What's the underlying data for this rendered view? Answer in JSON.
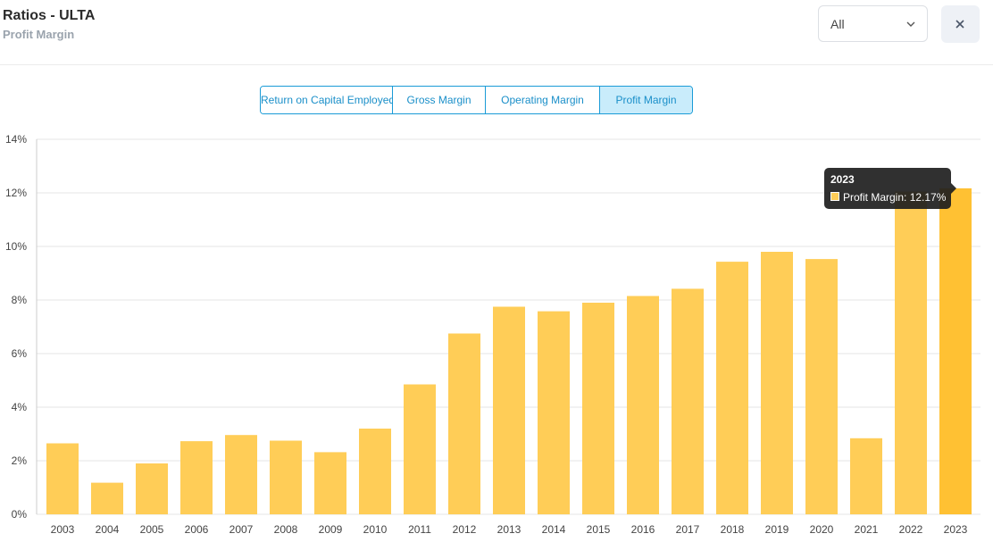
{
  "header": {
    "title": "Ratios - ULTA",
    "subtitle": "Profit Margin",
    "period_select": {
      "value": "All"
    },
    "close_icon": "close-icon"
  },
  "tabs": [
    {
      "label": "Return on Capital Employed",
      "active": false
    },
    {
      "label": "Gross Margin",
      "active": false
    },
    {
      "label": "Operating Margin",
      "active": false
    },
    {
      "label": "Profit Margin",
      "active": true
    }
  ],
  "tooltip": {
    "title": "2023",
    "series_label": "Profit Margin:",
    "value_text": "12.17%"
  },
  "colors": {
    "bar": "#ffcd57",
    "bar_highlight": "#ffc133",
    "accent": "#1a9bd7",
    "grid": "#e6e6e6"
  },
  "chart_data": {
    "type": "bar",
    "title": "",
    "xlabel": "",
    "ylabel": "",
    "categories": [
      "2003",
      "2004",
      "2005",
      "2006",
      "2007",
      "2008",
      "2009",
      "2010",
      "2011",
      "2012",
      "2013",
      "2014",
      "2015",
      "2016",
      "2017",
      "2018",
      "2019",
      "2020",
      "2021",
      "2022",
      "2023"
    ],
    "series": [
      {
        "name": "Profit Margin",
        "values": [
          2.65,
          1.18,
          1.9,
          2.73,
          2.96,
          2.75,
          2.32,
          3.2,
          4.85,
          6.75,
          7.75,
          7.58,
          7.9,
          8.15,
          8.42,
          9.43,
          9.8,
          9.53,
          2.84,
          12.05,
          12.17
        ]
      }
    ],
    "ylim": [
      0,
      14
    ],
    "yticks": [
      0,
      2,
      4,
      6,
      8,
      10,
      12,
      14
    ],
    "ytick_labels": [
      "0%",
      "2%",
      "4%",
      "6%",
      "8%",
      "10%",
      "12%",
      "14%"
    ],
    "highlighted_category": "2023",
    "grid": true,
    "legend": "none"
  }
}
